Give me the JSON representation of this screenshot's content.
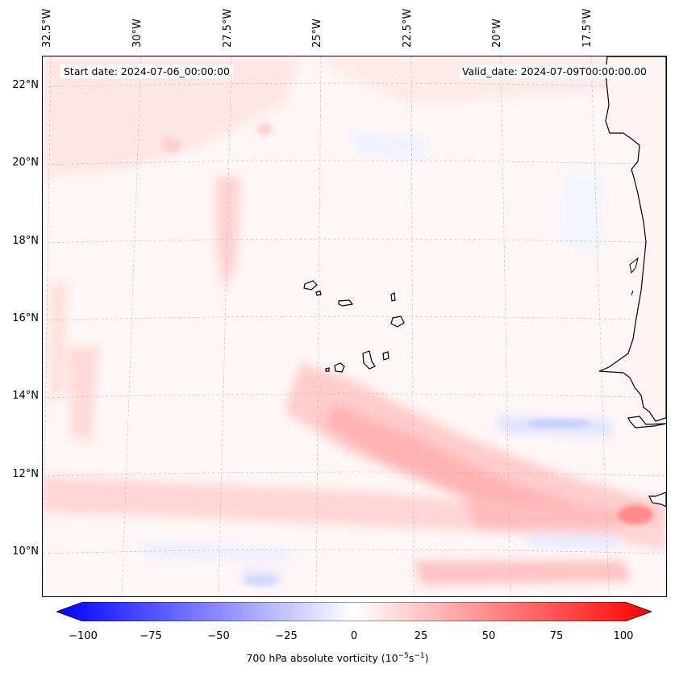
{
  "lon_labels": [
    "32.5°W",
    "30°W",
    "27.5°W",
    "25°W",
    "22.5°W",
    "20°W",
    "17.5°W"
  ],
  "lat_labels": [
    "22°N",
    "20°N",
    "18°N",
    "16°N",
    "14°N",
    "12°N",
    "10°N"
  ],
  "annotations": {
    "start_date": "Start date: 2024-07-06_00:00:00",
    "valid_date": "Valid_date: 2024-07-09T00:00:00.00"
  },
  "colorbar": {
    "ticks": [
      "−100",
      "−75",
      "−50",
      "−25",
      "0",
      "25",
      "50",
      "75",
      "100"
    ],
    "label_main": "700 hPa absolute vorticity (10",
    "label_exp1": "−5",
    "label_mid": "s",
    "label_exp2": "−1",
    "label_end": ")",
    "cmap": "bwr",
    "min_color": "#0000ff",
    "mid_color": "#ffffff",
    "max_color": "#ff0000"
  },
  "map": {
    "land_outline_color": "#000000",
    "gridline_color": "#bbbbbb"
  }
}
